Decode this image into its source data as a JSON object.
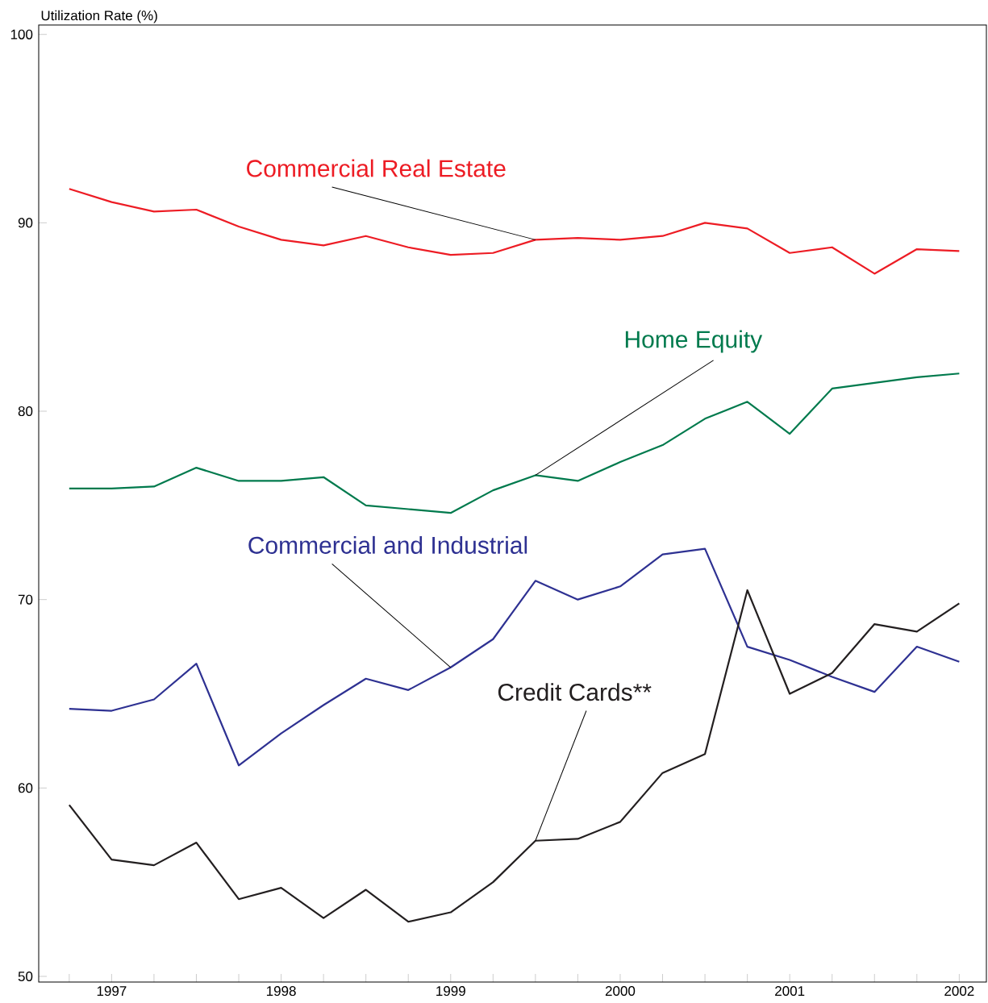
{
  "chart_data": {
    "type": "line",
    "ylabel": "Utilization Rate (%)",
    "x": [
      1996.75,
      1997,
      1997.25,
      1997.5,
      1997.75,
      1998,
      1998.25,
      1998.5,
      1998.75,
      1999,
      1999.25,
      1999.5,
      1999.75,
      2000,
      2000.25,
      2000.5,
      2000.75,
      2001,
      2001.25,
      2001.5,
      2001.75,
      2002
    ],
    "series": [
      {
        "name": "Commercial Real Estate",
        "color": "#ed1c24",
        "values": [
          91.8,
          91.1,
          90.6,
          90.7,
          89.8,
          89.1,
          88.8,
          89.3,
          88.7,
          88.3,
          88.4,
          89.1,
          89.2,
          89.1,
          89.3,
          90.0,
          89.7,
          88.4,
          88.7,
          87.3,
          88.6,
          88.5
        ]
      },
      {
        "name": "Home Equity",
        "color": "#007a4d",
        "values": [
          75.9,
          75.9,
          76.0,
          77.0,
          76.3,
          76.3,
          76.5,
          75.0,
          74.8,
          74.6,
          75.8,
          76.6,
          76.3,
          77.3,
          78.2,
          79.6,
          80.5,
          78.8,
          81.2,
          81.5,
          81.8,
          82.0
        ]
      },
      {
        "name": "Commercial and Industrial",
        "color": "#2e3192",
        "values": [
          64.2,
          64.1,
          64.7,
          66.6,
          61.2,
          62.9,
          64.4,
          65.8,
          65.2,
          66.4,
          67.9,
          71.0,
          70.0,
          70.7,
          72.4,
          72.7,
          67.5,
          66.8,
          65.9,
          65.1,
          67.5,
          66.7
        ]
      },
      {
        "name": "Credit Cards**",
        "color": "#231f20",
        "values": [
          59.1,
          56.2,
          55.9,
          57.1,
          54.1,
          54.7,
          53.1,
          54.6,
          52.9,
          53.4,
          55.0,
          57.2,
          57.3,
          58.2,
          60.8,
          61.8,
          70.5,
          65.0,
          66.1,
          68.7,
          68.3,
          69.8
        ]
      }
    ],
    "xlim": [
      1996.57,
      2002.16
    ],
    "ylim": [
      49.7,
      100.5
    ],
    "xticks": [
      {
        "value": 1996.75,
        "label": null
      },
      1997,
      {
        "value": 1997.25,
        "label": null
      },
      {
        "value": 1997.5,
        "label": null
      },
      {
        "value": 1997.75,
        "label": null
      },
      1998,
      {
        "value": 1998.25,
        "label": null
      },
      {
        "value": 1998.5,
        "label": null
      },
      {
        "value": 1998.75,
        "label": null
      },
      1999,
      {
        "value": 1999.25,
        "label": null
      },
      {
        "value": 1999.5,
        "label": null
      },
      {
        "value": 1999.75,
        "label": null
      },
      2000,
      {
        "value": 2000.25,
        "label": null
      },
      {
        "value": 2000.5,
        "label": null
      },
      {
        "value": 2000.75,
        "label": null
      },
      2001,
      {
        "value": 2001.25,
        "label": null
      },
      {
        "value": 2001.5,
        "label": null
      },
      {
        "value": 2001.75,
        "label": null
      },
      2002
    ],
    "yticks": [
      50,
      60,
      70,
      80,
      90,
      100
    ],
    "grid": false,
    "marker": "none",
    "line_style": "solid"
  }
}
